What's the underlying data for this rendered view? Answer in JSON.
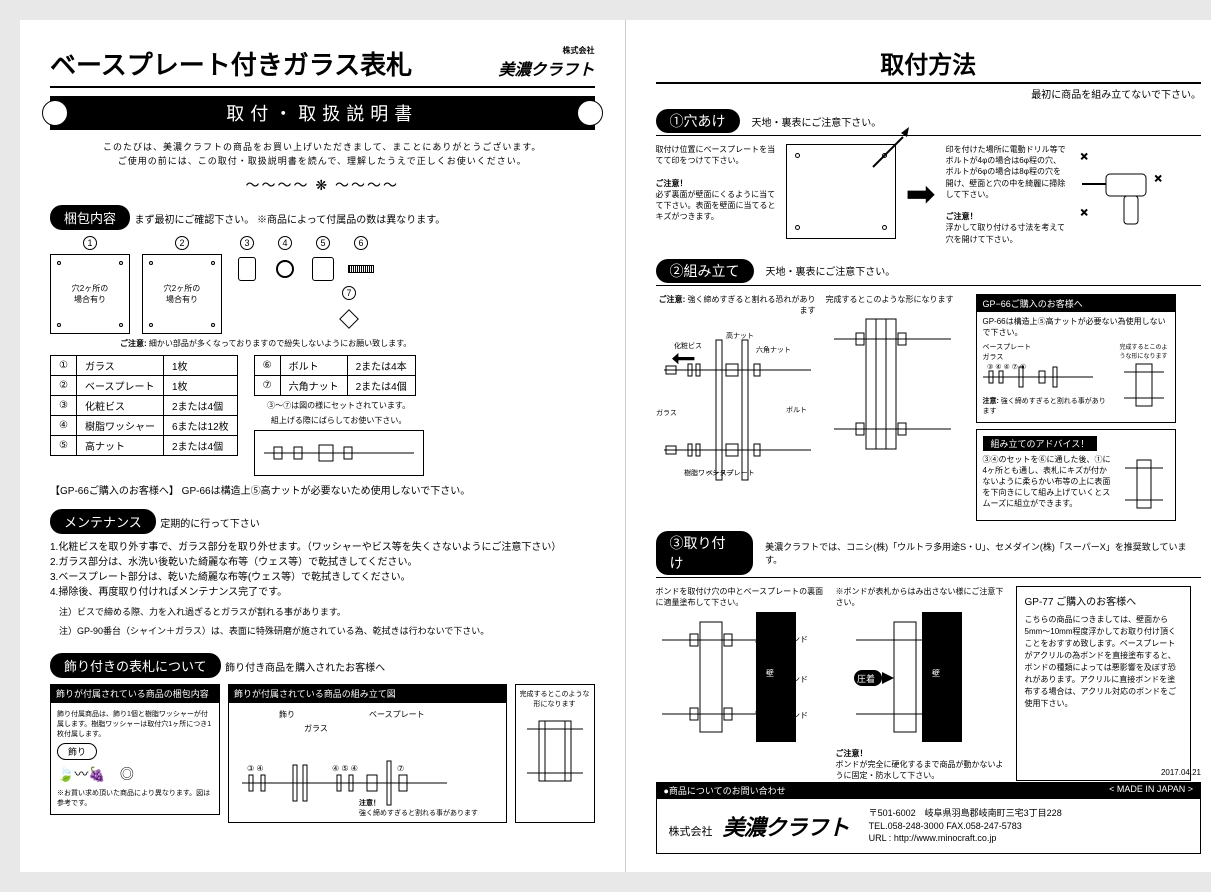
{
  "left": {
    "title": "ベースプレート付きガラス表札",
    "brand_small": "株式会社",
    "brand": "美濃クラフト",
    "subtitle": "取付・取扱説明書",
    "intro1": "このたびは、美濃クラフトの商品をお買い上げいただきまして、まことにありがとうございます。",
    "intro2": "ご使用の前には、この取付・取扱説明書を読んで、理解したうえで正しくお使いください。",
    "pkg_pill": "梱包内容",
    "pkg_note": "まず最初にご確認下さい。 ※商品によって付属品の数は異なります。",
    "plate1": "穴2ヶ所の\n場合有り",
    "plate2": "穴2ヶ所の\n場合有り",
    "parts_caution_hd": "ご注意:",
    "parts_caution": "細かい部品が多くなっておりますので紛失しないようにお願い致します。",
    "parts_table_l": [
      [
        "①",
        "ガラス",
        "1枚"
      ],
      [
        "②",
        "ベースプレート",
        "1枚"
      ],
      [
        "③",
        "化粧ビス",
        "2または4個"
      ],
      [
        "④",
        "樹脂ワッシャー",
        "6または12枚"
      ],
      [
        "⑤",
        "高ナット",
        "2または4個"
      ]
    ],
    "parts_table_r": [
      [
        "⑥",
        "ボルト",
        "2または4本"
      ],
      [
        "⑦",
        "六角ナット",
        "2または4個"
      ]
    ],
    "setnote1": "③〜⑦は図の様にセットされています。",
    "setnote2": "組上げる際にばらしてお使い下さい。",
    "gp66_foot": "【GP-66ご購入のお客様へ】 GP-66は構造上⑤高ナットが必要ないため使用しないで下さい。",
    "maint_pill": "メンテナンス",
    "maint_note": "定期的に行って下さい",
    "maint": [
      "1.化粧ビスを取り外す事で、ガラス部分を取り外せます。（ワッシャーやビス等を失くさないようにご注意下さい）",
      "2.ガラス部分は、水洗い後乾いた綺麗な布等（ウェス等）で乾拭きしてください。",
      "3.ベースプレート部分は、乾いた綺麗な布等(ウェス等）で乾拭きしてください。",
      "4.掃除後、再度取り付ければメンテナンス完了です。"
    ],
    "maint_sub1": "注）ビスで締める際、力を入れ過ぎるとガラスが割れる事があります。",
    "maint_sub2": "注）GP-90番台（シャイン＋ガラス）は、表面に特殊研磨が施されている為、乾拭きは行わないで下さい。",
    "deco_pill": "飾り付きの表札について",
    "deco_note": "飾り付き商品を購入されたお客様へ",
    "deco_l_hd": "飾りが付属されている商品の梱包内容",
    "deco_l_body": "飾り付属商品は、飾り1個と樹脂ワッシャーが付属します。樹脂ワッシャーは取付穴1ヶ所につき1枚付属します。",
    "deco_badge": "飾り",
    "deco_l_foot": "※お買い求め頂いた商品により異なります。図は参考です。",
    "deco_r_hd": "飾りが付属されている商品の組み立て図",
    "deco_r_lbl1": "飾り",
    "deco_r_lbl2": "ガラス",
    "deco_r_lbl3": "ベースプレート",
    "deco_r_warn_hd": "注意！",
    "deco_r_warn": "強く締めすぎると割れる事があります",
    "deco_fin_hd": "完成するとこのような形になります"
  },
  "right": {
    "title": "取付方法",
    "title_note": "最初に商品を組み立てないで下さい。",
    "s1_pill": "①穴あけ",
    "s1_note": "天地・裏表にご注意下さい。",
    "s1_t1": "取付け位置にベースプレートを当てて印をつけて下さい。",
    "s1_c_hd": "ご注意！",
    "s1_c": "必ず裏面が壁面にくるように当てて下さい。表面を壁面に当てるとキズがつきます。",
    "s1_t2": "印を付けた場所に電動ドリル等でボルトが4φの場合は6φ程の穴、ボルトが6φの場合は8φ程の穴を開け、壁面と穴の中を綺麗に掃除して下さい。",
    "s1_c2_hd": "ご注意！",
    "s1_c2": "浮かして取り付ける寸法を考えて穴を開けて下さい。",
    "s2_pill": "②組み立て",
    "s2_note": "天地・裏表にご注意下さい。",
    "s2_c_hd": "ご注意:",
    "s2_c": "強く締めすぎると割れる恐れがあります",
    "s2_lbl_bis": "化粧ビス",
    "s2_lbl_nut": "高ナット",
    "s2_lbl_hex": "六角ナット",
    "s2_lbl_glass": "ガラス",
    "s2_lbl_base": "ベースプレート",
    "s2_lbl_bolt": "ボルト",
    "s2_lbl_wash": "樹脂ワッシャー",
    "s2_fin": "完成するとこのような形になります",
    "s2_gp66_hd": "GP−66ご購入のお客様へ",
    "s2_gp66_t": "GP-66は構造上⑤高ナットが必要ない為使用しないで下さい。",
    "s2_gp66_fin": "完成するとこのような形になります",
    "s2_gp66_lbls": "ベースプレート",
    "s2_gp66_glass": "ガラス",
    "s2_gp66_warn_hd": "注意:",
    "s2_gp66_warn": "強く締めすぎると割れる事があります",
    "s2_adv_hd": "組み立てのアドバイス！",
    "s2_adv": "③④のセットを⑥に通した後、①に4ヶ所とも通し、表札にキズが付かないように柔らかい布等の上に表面を下向きにして組み上げていくとスムーズに組立ができます。",
    "s3_pill": "③取り付け",
    "s3_note": "美濃クラフトでは、コニシ(株)「ウルトラ多用途S・U」、セメダイン(株)「スーパーX」を推奨致しています。",
    "s3_t1": "ボンドを取付け穴の中とベースプレートの裏面に適量塗布して下さい。",
    "s3_t2": "※ボンドが表札からはみ出さない様にご注意下さい。",
    "s3_lbl_bond": "ボンド",
    "s3_lbl_wall": "壁",
    "s3_lbl_press": "圧着",
    "s3_gp77_hd": "GP-77 ご購入のお客様へ",
    "s3_gp77": "こちらの商品につきましては、壁面から5mm〜10mm程度浮かしてお取り付け頂くことをおすすめ致します。ベースプレートがアクリルの為ボンドを直接塗布すると、ボンドの種類によっては悪影響を及ぼす恐れがあります。アクリルに直接ボンドを塗布する場合は、アクリル対応のボンドをご使用下さい。",
    "s3_c_hd": "ご注意！",
    "s3_c": "ボンドが完全に硬化するまで商品が動かないように固定・防水して下さい。",
    "foot_l": "●商品についてのお問い合わせ",
    "foot_r": "< MADE IN JAPAN >",
    "foot_brand_kk": "株式会社",
    "foot_brand": "美濃クラフト",
    "foot_zip": "〒501-6002　岐阜県羽島郡岐南町三宅3丁目228",
    "foot_tel": "TEL.058-248-3000 FAX.058-247-5783",
    "foot_url": "URL : http://www.minocraft.co.jp",
    "date": "2017.04.21"
  }
}
